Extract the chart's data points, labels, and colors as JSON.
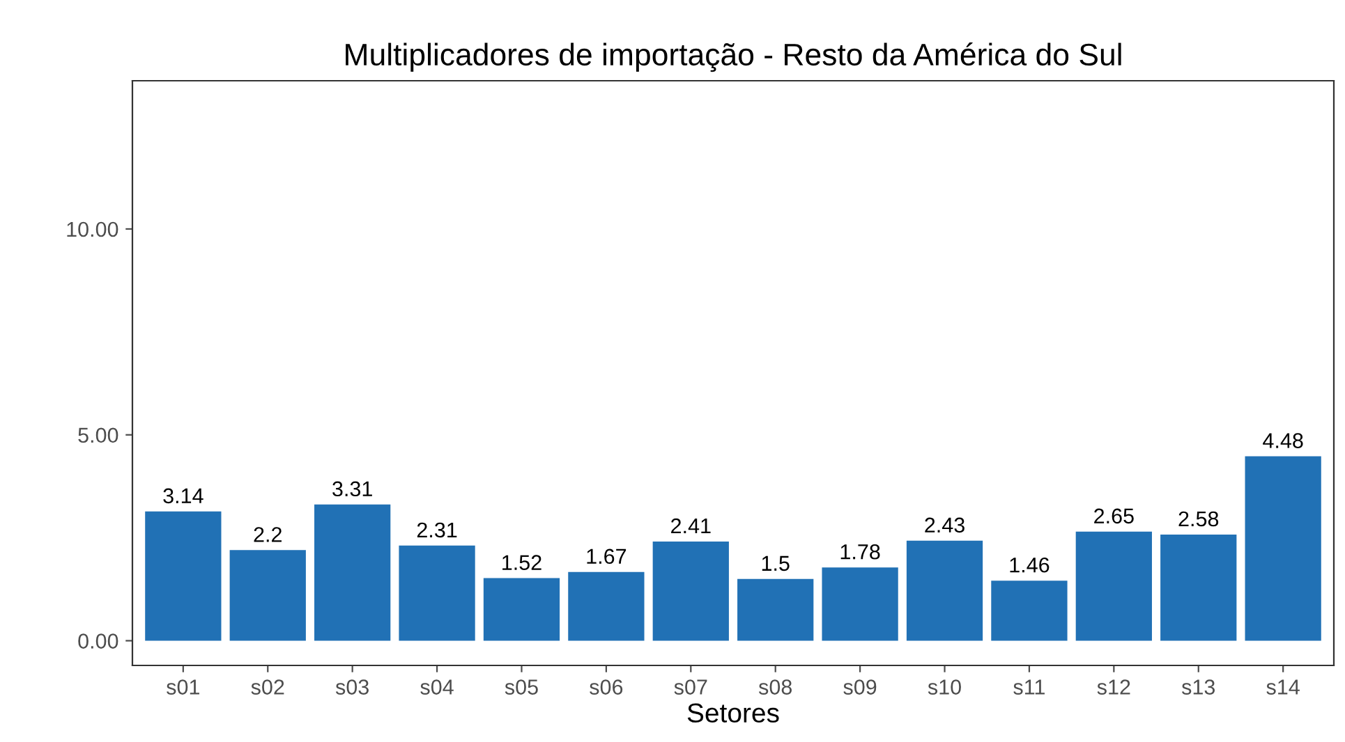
{
  "chart_data": {
    "type": "bar",
    "title": "Multiplicadores de importação - Resto da América do Sul",
    "xlabel": "Setores",
    "categories": [
      "s01",
      "s02",
      "s03",
      "s04",
      "s05",
      "s06",
      "s07",
      "s08",
      "s09",
      "s10",
      "s11",
      "s12",
      "s13",
      "s14"
    ],
    "values": [
      3.14,
      2.2,
      3.31,
      2.31,
      1.52,
      1.67,
      2.41,
      1.5,
      1.78,
      2.43,
      1.46,
      2.65,
      2.58,
      4.48
    ],
    "color": "#2171b5",
    "ylim": [
      -0.6,
      13.6
    ],
    "yticks": [
      {
        "value": 0,
        "label": "0.00"
      },
      {
        "value": 5,
        "label": "5.00"
      },
      {
        "value": 10,
        "label": "10.00"
      }
    ],
    "data_labels": true,
    "grid": false
  }
}
